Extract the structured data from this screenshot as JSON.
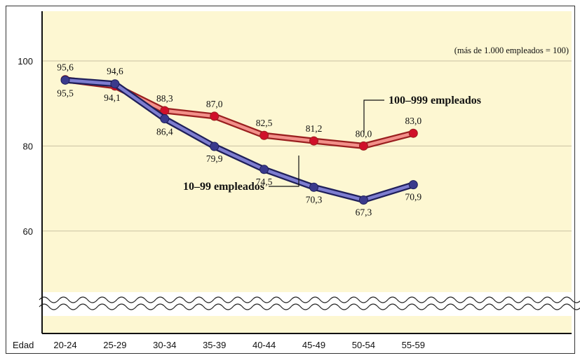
{
  "chart_data": {
    "type": "line",
    "xlabel": "Edad",
    "categories": [
      "20-24",
      "25-29",
      "30-34",
      "35-39",
      "40-44",
      "45-49",
      "50-54",
      "55-59"
    ],
    "ylim": [
      45,
      110
    ],
    "yticks": [
      60,
      80,
      100
    ],
    "grid": true,
    "axis_break": true,
    "note": "(más de 1.000 empleados = 100)",
    "series": [
      {
        "name": "100–999 empleados",
        "color": "#d03030",
        "values": [
          95.6,
          94.1,
          88.3,
          87.0,
          82.5,
          81.2,
          80.0,
          83.0
        ],
        "labels": [
          "95,6",
          "94,1",
          "88,3",
          "87,0",
          "82,5",
          "81,2",
          "80,0",
          "83,0"
        ]
      },
      {
        "name": "10–99 empleados",
        "color": "#3a3a8c",
        "values": [
          95.5,
          94.6,
          86.4,
          79.9,
          74.5,
          70.3,
          67.3,
          70.9
        ],
        "labels": [
          "95,5",
          "94,6",
          "86,4",
          "79,9",
          "74,5",
          "70,3",
          "67,3",
          "70,9"
        ]
      }
    ]
  }
}
